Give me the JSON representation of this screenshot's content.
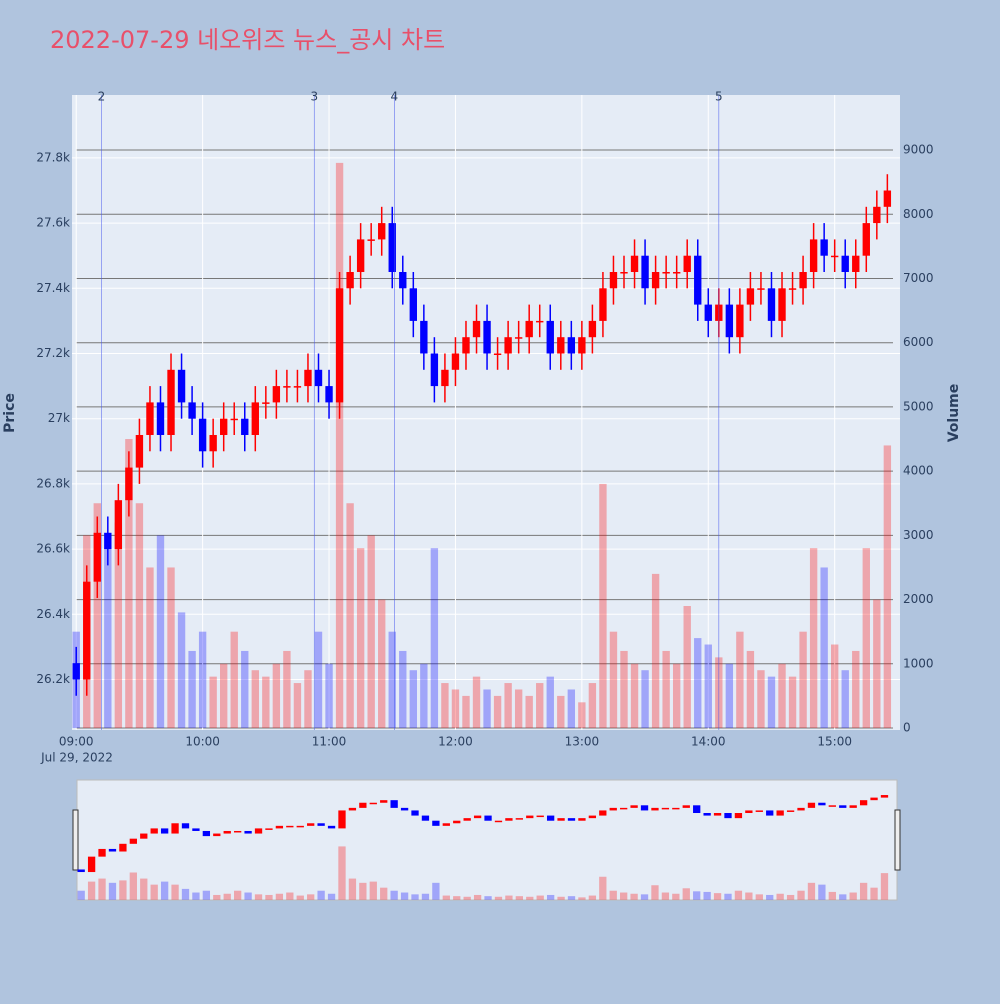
{
  "chart_data": {
    "type": "candlestick",
    "title": "2022-07-29 네오위즈 뉴스_공시 차트",
    "y_title": "Price",
    "y2_title": "Volume",
    "up_color": "#ff0000",
    "down_color": "#0000ff",
    "x_date_label": "Jul 29, 2022",
    "xlim": [
      "2022-07-29 08:58",
      "2022-07-29 15:31"
    ],
    "xticks": [
      {
        "value": "2022-07-29 09:00",
        "label": "09:00"
      },
      {
        "value": "2022-07-29 10:00",
        "label": "10:00"
      },
      {
        "value": "2022-07-29 11:00",
        "label": "11:00"
      },
      {
        "value": "2022-07-29 12:00",
        "label": "12:00"
      },
      {
        "value": "2022-07-29 13:00",
        "label": "13:00"
      },
      {
        "value": "2022-07-29 14:00",
        "label": "14:00"
      },
      {
        "value": "2022-07-29 15:00",
        "label": "15:00"
      }
    ],
    "ylim": [
      26045,
      27993
    ],
    "yticks": [
      {
        "value": 26200,
        "label": "26.2k"
      },
      {
        "value": 26400,
        "label": "26.4k"
      },
      {
        "value": 26600,
        "label": "26.6k"
      },
      {
        "value": 26800,
        "label": "26.8k"
      },
      {
        "value": 27000,
        "label": "27k"
      },
      {
        "value": 27200,
        "label": "27.2k"
      },
      {
        "value": 27400,
        "label": "27.4k"
      },
      {
        "value": 27600,
        "label": "27.6k"
      },
      {
        "value": 27800,
        "label": "27.8k"
      }
    ],
    "y2lim": [
      -31,
      9857
    ],
    "y2ticks": [
      0,
      1000,
      2000,
      3000,
      4000,
      5000,
      6000,
      7000,
      8000,
      9000
    ],
    "annotations": [
      {
        "x": "2022-07-29 09:12",
        "text": "2"
      },
      {
        "x": "2022-07-29 10:53",
        "text": "3"
      },
      {
        "x": "2022-07-29 11:31",
        "text": "4"
      },
      {
        "x": "2022-07-29 14:05",
        "text": "5"
      }
    ],
    "x": [
      "2022-07-29 09:00",
      "2022-07-29 09:05",
      "2022-07-29 09:10",
      "2022-07-29 09:15",
      "2022-07-29 09:20",
      "2022-07-29 09:25",
      "2022-07-29 09:30",
      "2022-07-29 09:35",
      "2022-07-29 09:40",
      "2022-07-29 09:45",
      "2022-07-29 09:50",
      "2022-07-29 09:55",
      "2022-07-29 10:00",
      "2022-07-29 10:05",
      "2022-07-29 10:10",
      "2022-07-29 10:15",
      "2022-07-29 10:20",
      "2022-07-29 10:25",
      "2022-07-29 10:30",
      "2022-07-29 10:35",
      "2022-07-29 10:40",
      "2022-07-29 10:45",
      "2022-07-29 10:50",
      "2022-07-29 10:55",
      "2022-07-29 11:00",
      "2022-07-29 11:05",
      "2022-07-29 11:10",
      "2022-07-29 11:15",
      "2022-07-29 11:20",
      "2022-07-29 11:25",
      "2022-07-29 11:30",
      "2022-07-29 11:35",
      "2022-07-29 11:40",
      "2022-07-29 11:45",
      "2022-07-29 11:50",
      "2022-07-29 11:55",
      "2022-07-29 12:00",
      "2022-07-29 12:05",
      "2022-07-29 12:10",
      "2022-07-29 12:15",
      "2022-07-29 12:20",
      "2022-07-29 12:25",
      "2022-07-29 12:30",
      "2022-07-29 12:35",
      "2022-07-29 12:40",
      "2022-07-29 12:45",
      "2022-07-29 12:50",
      "2022-07-29 12:55",
      "2022-07-29 13:00",
      "2022-07-29 13:05",
      "2022-07-29 13:10",
      "2022-07-29 13:15",
      "2022-07-29 13:20",
      "2022-07-29 13:25",
      "2022-07-29 13:30",
      "2022-07-29 13:35",
      "2022-07-29 13:40",
      "2022-07-29 13:45",
      "2022-07-29 13:50",
      "2022-07-29 13:55",
      "2022-07-29 14:00",
      "2022-07-29 14:05",
      "2022-07-29 14:10",
      "2022-07-29 14:15",
      "2022-07-29 14:20",
      "2022-07-29 14:25",
      "2022-07-29 14:30",
      "2022-07-29 14:35",
      "2022-07-29 14:40",
      "2022-07-29 14:45",
      "2022-07-29 14:50",
      "2022-07-29 14:55",
      "2022-07-29 15:00",
      "2022-07-29 15:05",
      "2022-07-29 15:10",
      "2022-07-29 15:15",
      "2022-07-29 15:20",
      "2022-07-29 15:25"
    ],
    "open": [
      26250,
      26200,
      26500,
      26650,
      26600,
      26750,
      26850,
      26950,
      27050,
      26950,
      27150,
      27050,
      27000,
      26900,
      26950,
      27000,
      27000,
      26950,
      27050,
      27050,
      27100,
      27100,
      27100,
      27150,
      27100,
      27050,
      27400,
      27450,
      27550,
      27550,
      27600,
      27450,
      27400,
      27300,
      27200,
      27100,
      27150,
      27200,
      27250,
      27300,
      27200,
      27200,
      27250,
      27250,
      27300,
      27300,
      27200,
      27250,
      27200,
      27250,
      27300,
      27400,
      27450,
      27450,
      27500,
      27400,
      27450,
      27450,
      27450,
      27500,
      27350,
      27300,
      27350,
      27250,
      27350,
      27400,
      27400,
      27300,
      27400,
      27400,
      27450,
      27550,
      27500,
      27500,
      27450,
      27500,
      27600,
      27650
    ],
    "high": [
      26300,
      26550,
      26700,
      26700,
      26800,
      26900,
      27000,
      27100,
      27100,
      27200,
      27200,
      27100,
      27050,
      27000,
      27050,
      27050,
      27050,
      27100,
      27100,
      27150,
      27150,
      27150,
      27200,
      27200,
      27150,
      27450,
      27500,
      27600,
      27600,
      27650,
      27650,
      27500,
      27450,
      27350,
      27250,
      27200,
      27250,
      27300,
      27350,
      27350,
      27250,
      27300,
      27300,
      27350,
      27350,
      27350,
      27300,
      27300,
      27300,
      27350,
      27450,
      27500,
      27500,
      27550,
      27550,
      27500,
      27500,
      27500,
      27550,
      27550,
      27400,
      27400,
      27400,
      27400,
      27450,
      27450,
      27450,
      27450,
      27450,
      27500,
      27600,
      27600,
      27550,
      27550,
      27550,
      27650,
      27700,
      27750
    ],
    "low": [
      26150,
      26150,
      26450,
      26550,
      26550,
      26700,
      26800,
      26900,
      26900,
      26900,
      27000,
      26950,
      26850,
      26850,
      26900,
      26950,
      26900,
      26900,
      27000,
      27000,
      27050,
      27050,
      27050,
      27050,
      27000,
      27000,
      27350,
      27400,
      27500,
      27500,
      27400,
      27350,
      27250,
      27150,
      27050,
      27050,
      27100,
      27150,
      27200,
      27150,
      27150,
      27150,
      27200,
      27200,
      27250,
      27150,
      27150,
      27150,
      27150,
      27200,
      27250,
      27350,
      27400,
      27400,
      27350,
      27350,
      27400,
      27400,
      27400,
      27300,
      27250,
      27250,
      27200,
      27200,
      27300,
      27350,
      27250,
      27250,
      27350,
      27350,
      27400,
      27450,
      27450,
      27400,
      27400,
      27450,
      27550,
      27600
    ],
    "close": [
      26200,
      26500,
      26650,
      26600,
      26750,
      26850,
      26950,
      27050,
      26950,
      27150,
      27050,
      27000,
      26900,
      26950,
      27000,
      27000,
      26950,
      27050,
      27050,
      27100,
      27100,
      27100,
      27150,
      27100,
      27050,
      27400,
      27450,
      27550,
      27550,
      27600,
      27450,
      27400,
      27300,
      27200,
      27100,
      27150,
      27200,
      27250,
      27300,
      27200,
      27200,
      27250,
      27250,
      27300,
      27300,
      27200,
      27250,
      27200,
      27250,
      27300,
      27400,
      27450,
      27450,
      27500,
      27400,
      27450,
      27450,
      27450,
      27500,
      27350,
      27300,
      27350,
      27250,
      27350,
      27400,
      27400,
      27300,
      27400,
      27400,
      27450,
      27550,
      27500,
      27500,
      27450,
      27500,
      27600,
      27650,
      27700
    ],
    "volume": [
      1500,
      3000,
      3500,
      2800,
      3200,
      4500,
      3500,
      2500,
      3000,
      2500,
      1800,
      1200,
      1500,
      800,
      1000,
      1500,
      1200,
      900,
      800,
      1000,
      1200,
      700,
      900,
      1500,
      1000,
      8800,
      3500,
      2800,
      3000,
      2000,
      1500,
      1200,
      900,
      1000,
      2800,
      700,
      600,
      500,
      800,
      600,
      500,
      700,
      600,
      500,
      700,
      800,
      500,
      600,
      400,
      700,
      3800,
      1500,
      1200,
      1000,
      900,
      2400,
      1200,
      1000,
      1900,
      1400,
      1300,
      1100,
      1000,
      1500,
      1200,
      900,
      800,
      1000,
      800,
      1500,
      2800,
      2500,
      1300,
      900,
      1200,
      2800,
      2000,
      4400
    ]
  }
}
